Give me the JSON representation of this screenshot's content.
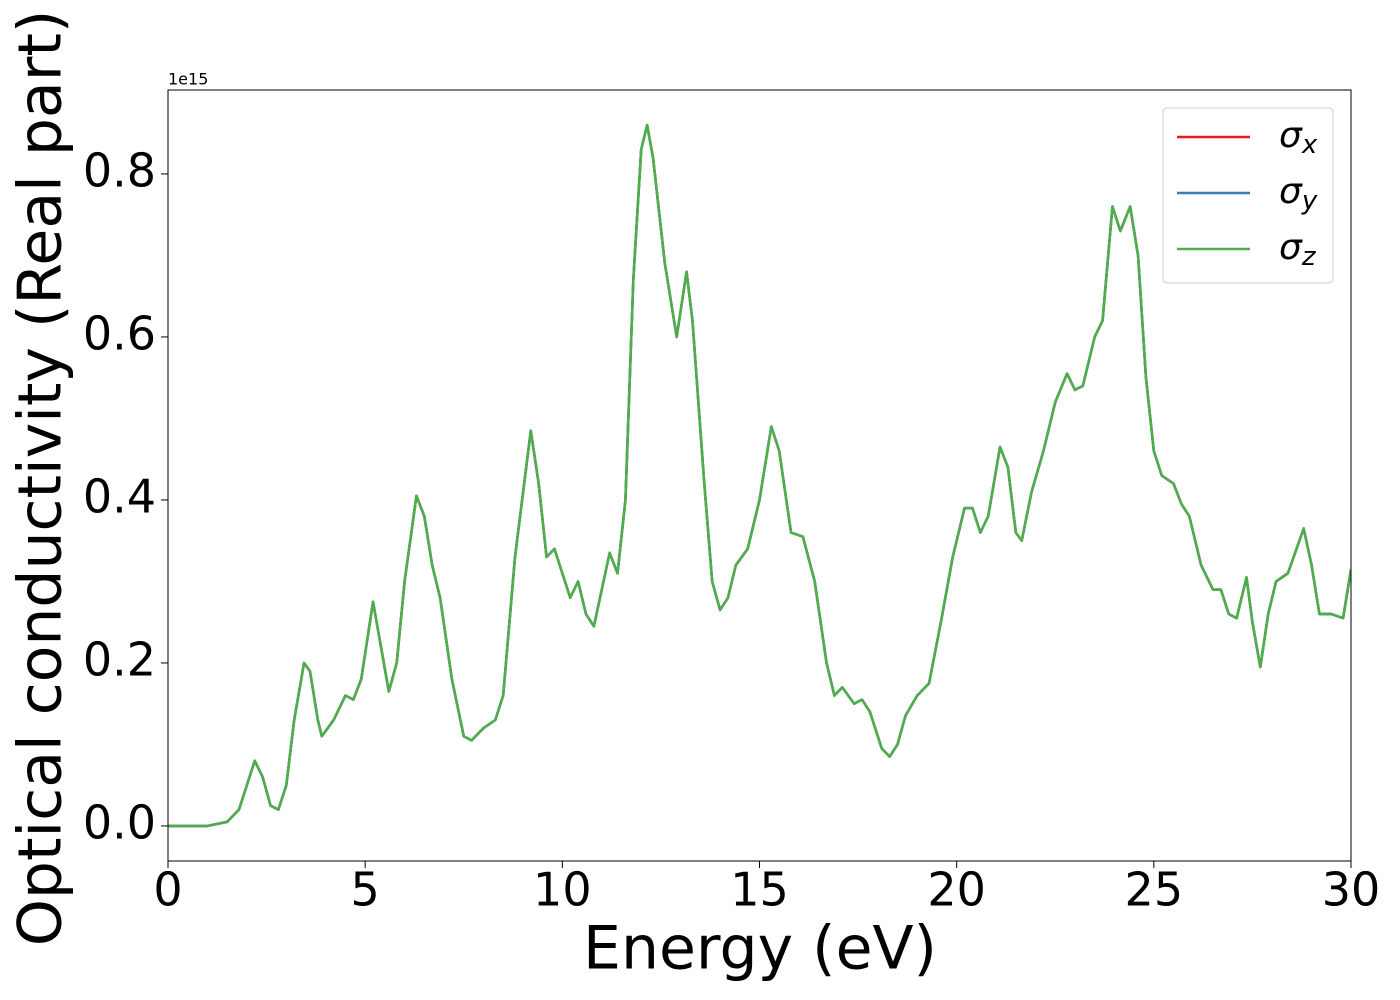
{
  "chart_data": {
    "type": "line",
    "xlabel": "Energy (eV)",
    "ylabel": "Optical conductivity (Real part)",
    "y_offset_label": "1e15",
    "xlim": [
      0,
      30
    ],
    "xticks": [
      0,
      5,
      10,
      15,
      20,
      25,
      30
    ],
    "ylim": [
      -0.043,
      0.903
    ],
    "yticks": [
      {
        "value": 0,
        "label": "0.0"
      },
      {
        "value": 0.2,
        "label": "0.2"
      },
      {
        "value": 0.4,
        "label": "0.4"
      },
      {
        "value": 0.6,
        "label": "0.6"
      },
      {
        "value": 0.8,
        "label": "0.8"
      }
    ],
    "legend": "upper right",
    "x": [
      0,
      1,
      1.5,
      1.8,
      2.0,
      2.2,
      2.4,
      2.6,
      2.8,
      3.0,
      3.2,
      3.45,
      3.6,
      3.8,
      3.9,
      4.2,
      4.5,
      4.7,
      4.9,
      5.2,
      5.4,
      5.6,
      5.8,
      6.0,
      6.3,
      6.5,
      6.7,
      6.9,
      7.2,
      7.5,
      7.7,
      8.0,
      8.3,
      8.5,
      8.8,
      9.2,
      9.4,
      9.6,
      9.8,
      10.0,
      10.2,
      10.4,
      10.6,
      10.8,
      11.0,
      11.2,
      11.4,
      11.6,
      11.8,
      12.0,
      12.15,
      12.3,
      12.6,
      12.9,
      13.15,
      13.3,
      13.6,
      13.8,
      14.0,
      14.2,
      14.4,
      14.7,
      15.0,
      15.3,
      15.5,
      15.8,
      16.1,
      16.4,
      16.7,
      16.9,
      17.1,
      17.4,
      17.6,
      17.8,
      18.1,
      18.3,
      18.5,
      18.7,
      19.0,
      19.3,
      19.6,
      19.9,
      20.2,
      20.4,
      20.6,
      20.8,
      21.1,
      21.3,
      21.5,
      21.65,
      21.9,
      22.2,
      22.5,
      22.8,
      23.0,
      23.2,
      23.5,
      23.7,
      23.95,
      24.15,
      24.4,
      24.6,
      24.8,
      25.0,
      25.2,
      25.5,
      25.7,
      25.9,
      26.2,
      26.5,
      26.7,
      26.9,
      27.1,
      27.35,
      27.5,
      27.7,
      27.9,
      28.1,
      28.4,
      28.8,
      29.0,
      29.2,
      29.5,
      29.8,
      30.0
    ],
    "series": [
      {
        "name": "σx",
        "color": "#e41a1c",
        "values": [
          0,
          0,
          0.005,
          0.02,
          0.05,
          0.08,
          0.06,
          0.025,
          0.02,
          0.05,
          0.13,
          0.2,
          0.19,
          0.13,
          0.11,
          0.13,
          0.16,
          0.155,
          0.18,
          0.275,
          0.22,
          0.165,
          0.2,
          0.3,
          0.405,
          0.38,
          0.32,
          0.28,
          0.18,
          0.11,
          0.105,
          0.12,
          0.13,
          0.16,
          0.33,
          0.485,
          0.42,
          0.33,
          0.34,
          0.31,
          0.28,
          0.3,
          0.26,
          0.245,
          0.29,
          0.335,
          0.31,
          0.4,
          0.67,
          0.83,
          0.86,
          0.82,
          0.69,
          0.6,
          0.68,
          0.62,
          0.42,
          0.3,
          0.265,
          0.28,
          0.32,
          0.34,
          0.4,
          0.49,
          0.46,
          0.36,
          0.355,
          0.3,
          0.2,
          0.16,
          0.17,
          0.15,
          0.155,
          0.14,
          0.095,
          0.085,
          0.1,
          0.135,
          0.16,
          0.175,
          0.25,
          0.33,
          0.39,
          0.39,
          0.36,
          0.38,
          0.465,
          0.44,
          0.36,
          0.35,
          0.41,
          0.46,
          0.52,
          0.555,
          0.535,
          0.54,
          0.6,
          0.62,
          0.76,
          0.73,
          0.76,
          0.7,
          0.55,
          0.46,
          0.43,
          0.42,
          0.395,
          0.38,
          0.32,
          0.29,
          0.29,
          0.26,
          0.255,
          0.305,
          0.25,
          0.195,
          0.26,
          0.3,
          0.31,
          0.365,
          0.32,
          0.26,
          0.26,
          0.255,
          0.315
        ]
      },
      {
        "name": "σy",
        "color": "#377eb8",
        "values": [
          0,
          0,
          0.005,
          0.02,
          0.05,
          0.08,
          0.06,
          0.025,
          0.02,
          0.05,
          0.13,
          0.2,
          0.19,
          0.13,
          0.11,
          0.13,
          0.16,
          0.155,
          0.18,
          0.275,
          0.22,
          0.165,
          0.2,
          0.3,
          0.405,
          0.38,
          0.32,
          0.28,
          0.18,
          0.11,
          0.105,
          0.12,
          0.13,
          0.16,
          0.33,
          0.485,
          0.42,
          0.33,
          0.34,
          0.31,
          0.28,
          0.3,
          0.26,
          0.245,
          0.29,
          0.335,
          0.31,
          0.4,
          0.67,
          0.83,
          0.86,
          0.82,
          0.69,
          0.6,
          0.68,
          0.62,
          0.42,
          0.3,
          0.265,
          0.28,
          0.32,
          0.34,
          0.4,
          0.49,
          0.46,
          0.36,
          0.355,
          0.3,
          0.2,
          0.16,
          0.17,
          0.15,
          0.155,
          0.14,
          0.095,
          0.085,
          0.1,
          0.135,
          0.16,
          0.175,
          0.25,
          0.33,
          0.39,
          0.39,
          0.36,
          0.38,
          0.465,
          0.44,
          0.36,
          0.35,
          0.41,
          0.46,
          0.52,
          0.555,
          0.535,
          0.54,
          0.6,
          0.62,
          0.76,
          0.73,
          0.76,
          0.7,
          0.55,
          0.46,
          0.43,
          0.42,
          0.395,
          0.38,
          0.32,
          0.29,
          0.29,
          0.26,
          0.255,
          0.305,
          0.25,
          0.195,
          0.26,
          0.3,
          0.31,
          0.365,
          0.32,
          0.26,
          0.26,
          0.255,
          0.315
        ]
      },
      {
        "name": "σz",
        "color": "#4daf4a",
        "values": [
          0,
          0,
          0.005,
          0.02,
          0.05,
          0.08,
          0.06,
          0.025,
          0.02,
          0.05,
          0.13,
          0.2,
          0.19,
          0.13,
          0.11,
          0.13,
          0.16,
          0.155,
          0.18,
          0.275,
          0.22,
          0.165,
          0.2,
          0.3,
          0.405,
          0.38,
          0.32,
          0.28,
          0.18,
          0.11,
          0.105,
          0.12,
          0.13,
          0.16,
          0.33,
          0.485,
          0.42,
          0.33,
          0.34,
          0.31,
          0.28,
          0.3,
          0.26,
          0.245,
          0.29,
          0.335,
          0.31,
          0.4,
          0.67,
          0.83,
          0.86,
          0.82,
          0.69,
          0.6,
          0.68,
          0.62,
          0.42,
          0.3,
          0.265,
          0.28,
          0.32,
          0.34,
          0.4,
          0.49,
          0.46,
          0.36,
          0.355,
          0.3,
          0.2,
          0.16,
          0.17,
          0.15,
          0.155,
          0.14,
          0.095,
          0.085,
          0.1,
          0.135,
          0.16,
          0.175,
          0.25,
          0.33,
          0.39,
          0.39,
          0.36,
          0.38,
          0.465,
          0.44,
          0.36,
          0.35,
          0.41,
          0.46,
          0.52,
          0.555,
          0.535,
          0.54,
          0.6,
          0.62,
          0.76,
          0.73,
          0.76,
          0.7,
          0.55,
          0.46,
          0.43,
          0.42,
          0.395,
          0.38,
          0.32,
          0.29,
          0.29,
          0.26,
          0.255,
          0.305,
          0.25,
          0.195,
          0.26,
          0.3,
          0.31,
          0.365,
          0.32,
          0.26,
          0.26,
          0.255,
          0.315
        ]
      }
    ]
  }
}
